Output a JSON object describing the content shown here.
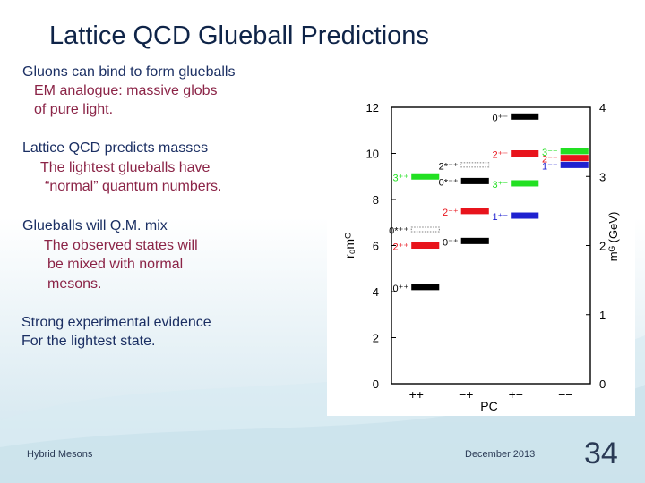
{
  "slide": {
    "title": "Lattice QCD Glueball Predictions",
    "bullets": [
      {
        "main": "Gluons can bind to form glueballs",
        "sub": [
          "EM analogue: massive globs",
          "of pure light."
        ]
      },
      {
        "main": "Lattice QCD predicts masses",
        "sub": [
          "The lightest glueballs have",
          "“normal” quantum numbers."
        ]
      },
      {
        "main": "Glueballs will Q.M. mix",
        "sub": [
          "The observed states will",
          "be mixed with normal",
          "mesons."
        ]
      },
      {
        "main": "Strong experimental evidence",
        "sub": [
          "For the lightest state."
        ]
      }
    ],
    "footer_left": "Hybrid Mesons",
    "footer_date": "December 2013",
    "page_number": "34"
  },
  "colors": {
    "title": "#0f2448",
    "text_primary": "#1b2f63",
    "text_secondary": "#8b2447",
    "background_gradient": [
      "#ffffff",
      "#cde3ed"
    ],
    "level_colors": {
      "black": "#000000",
      "red": "#e8141c",
      "green": "#22e022",
      "blue": "#1f22d0"
    }
  },
  "chart_data": {
    "type": "scatter",
    "left_axis_label": "r₀mᴳ",
    "right_axis_label": "mᴳ (GeV)",
    "xlabel": "PC",
    "left_ticks": [
      "0",
      "2",
      "4",
      "6",
      "8",
      "10",
      "12"
    ],
    "right_ticks": [
      "0",
      "1",
      "2",
      "3",
      "4"
    ],
    "left_ylim": [
      0,
      12
    ],
    "right_ylim": [
      0,
      4
    ],
    "categories": [
      "++",
      "−+",
      "+−",
      "−−"
    ],
    "states": [
      {
        "category": "++",
        "label": "0⁺⁺",
        "value": 4.2,
        "color": "black",
        "outline": false
      },
      {
        "category": "++",
        "label": "2⁺⁺",
        "value": 6.0,
        "color": "red",
        "outline": false
      },
      {
        "category": "++",
        "label": "0*⁺⁺",
        "value": 6.7,
        "color": "black",
        "outline": true
      },
      {
        "category": "++",
        "label": "3⁺⁺",
        "value": 9.0,
        "color": "green",
        "outline": false
      },
      {
        "category": "−+",
        "label": "0⁻⁺",
        "value": 6.2,
        "color": "black",
        "outline": false
      },
      {
        "category": "−+",
        "label": "2⁻⁺",
        "value": 7.5,
        "color": "red",
        "outline": false
      },
      {
        "category": "−+",
        "label": "0*⁻⁺",
        "value": 8.8,
        "color": "black",
        "outline": false
      },
      {
        "category": "−+",
        "label": "2*⁻⁺",
        "value": 9.5,
        "color": "black",
        "outline": true
      },
      {
        "category": "+−",
        "label": "1⁺⁻",
        "value": 7.3,
        "color": "blue",
        "outline": false
      },
      {
        "category": "+−",
        "label": "3⁺⁻",
        "value": 8.7,
        "color": "green",
        "outline": false
      },
      {
        "category": "+−",
        "label": "2⁺⁻",
        "value": 10.0,
        "color": "red",
        "outline": false
      },
      {
        "category": "+−",
        "label": "0⁺⁻",
        "value": 11.6,
        "color": "black",
        "outline": false
      },
      {
        "category": "−−",
        "label": "1⁻⁻",
        "value": 9.5,
        "color": "blue",
        "outline": false
      },
      {
        "category": "−−",
        "label": "2⁻⁻",
        "value": 9.8,
        "color": "red",
        "outline": false
      },
      {
        "category": "−−",
        "label": "3⁻⁻",
        "value": 10.1,
        "color": "green",
        "outline": false
      }
    ]
  }
}
